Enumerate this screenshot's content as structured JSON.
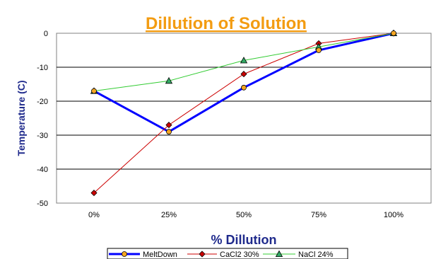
{
  "chart_data": {
    "type": "line",
    "title": "Dillution of Solution",
    "xlabel": "% Dillution",
    "ylabel": "Temperature (C)",
    "categories": [
      "0%",
      "25%",
      "50%",
      "75%",
      "100%"
    ],
    "ylim": [
      -50,
      0
    ],
    "yticks": [
      0,
      -10,
      -20,
      -30,
      -40,
      -50
    ],
    "grid": true,
    "legend": "bottom",
    "series": [
      {
        "name": "MeltDown",
        "values": [
          -17,
          -29,
          -16,
          -5,
          0
        ],
        "color": "#0000ff",
        "marker": "circle",
        "marker_color": "#f5a623"
      },
      {
        "name": "CaCl2 30%",
        "values": [
          -47,
          -27,
          -12,
          -3,
          0
        ],
        "color": "#cc0000",
        "marker": "diamond",
        "marker_color": "#cc0000"
      },
      {
        "name": "NaCl 24%",
        "values": [
          -17,
          -14,
          -8,
          -4,
          0
        ],
        "color": "#33cc33",
        "marker": "triangle",
        "marker_color": "#33aa66"
      }
    ]
  }
}
